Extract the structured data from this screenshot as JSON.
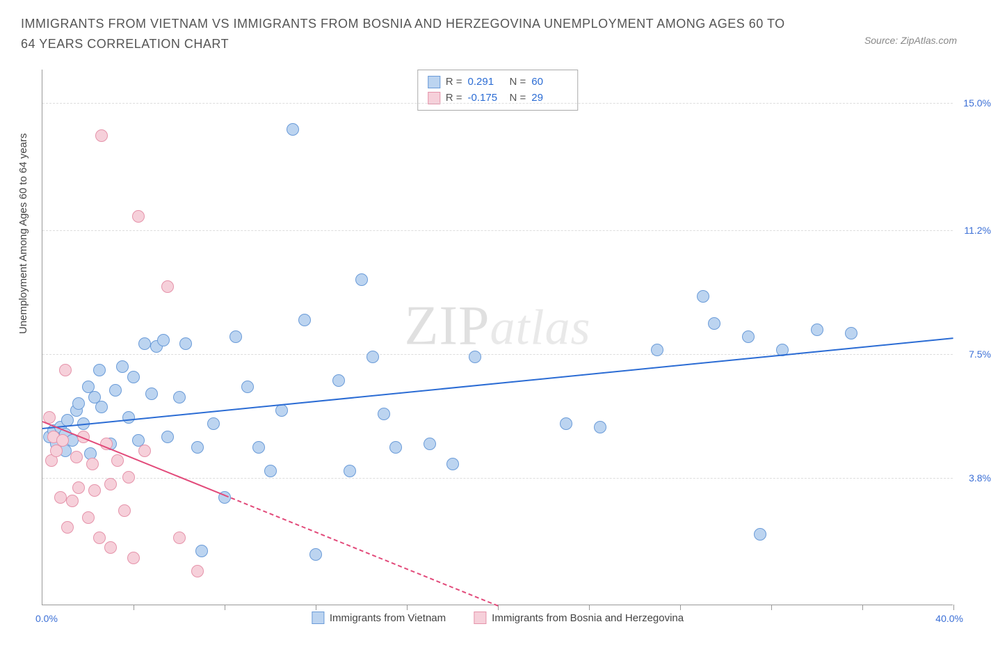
{
  "header": {
    "title": "IMMIGRANTS FROM VIETNAM VS IMMIGRANTS FROM BOSNIA AND HERZEGOVINA UNEMPLOYMENT AMONG AGES 60 TO 64 YEARS CORRELATION CHART",
    "source": "Source: ZipAtlas.com"
  },
  "chart": {
    "type": "scatter",
    "ylabel": "Unemployment Among Ages 60 to 64 years",
    "xlim": [
      0,
      40
    ],
    "ylim": [
      0,
      16
    ],
    "yticks": [
      {
        "v": 3.8,
        "label": "3.8%"
      },
      {
        "v": 7.5,
        "label": "7.5%"
      },
      {
        "v": 11.2,
        "label": "11.2%"
      },
      {
        "v": 15.0,
        "label": "15.0%"
      }
    ],
    "xticks_minor": [
      4,
      8,
      12,
      16,
      20,
      24,
      28,
      32,
      36,
      40
    ],
    "xaxis_min_label": "0.0%",
    "xaxis_max_label": "40.0%",
    "background_color": "#ffffff",
    "grid_color": "#dddddd",
    "point_radius": 9,
    "point_stroke_width": 1,
    "series": [
      {
        "name": "Immigrants from Vietnam",
        "color_fill": "#bcd4f0",
        "color_stroke": "#6a9bd8",
        "trend_color": "#2b6cd4",
        "R": "0.291",
        "N": "60",
        "trend": {
          "x1": 0,
          "y1": 5.3,
          "x2": 40,
          "y2": 8.0,
          "dash_from_x": null
        },
        "points": [
          [
            0.3,
            5.0
          ],
          [
            0.5,
            5.2
          ],
          [
            0.6,
            4.8
          ],
          [
            0.8,
            5.3
          ],
          [
            1.0,
            5.1
          ],
          [
            1.0,
            4.6
          ],
          [
            1.1,
            5.5
          ],
          [
            1.3,
            4.9
          ],
          [
            1.5,
            5.8
          ],
          [
            1.6,
            6.0
          ],
          [
            1.8,
            5.4
          ],
          [
            2.0,
            6.5
          ],
          [
            2.1,
            4.5
          ],
          [
            2.3,
            6.2
          ],
          [
            2.5,
            7.0
          ],
          [
            2.6,
            5.9
          ],
          [
            3.0,
            4.8
          ],
          [
            3.2,
            6.4
          ],
          [
            3.5,
            7.1
          ],
          [
            3.8,
            5.6
          ],
          [
            4.0,
            6.8
          ],
          [
            4.2,
            4.9
          ],
          [
            4.5,
            7.8
          ],
          [
            4.8,
            6.3
          ],
          [
            5.0,
            7.7
          ],
          [
            5.3,
            7.9
          ],
          [
            5.5,
            5.0
          ],
          [
            6.0,
            6.2
          ],
          [
            6.3,
            7.8
          ],
          [
            6.8,
            4.7
          ],
          [
            7.0,
            1.6
          ],
          [
            7.5,
            5.4
          ],
          [
            8.0,
            3.2
          ],
          [
            8.5,
            8.0
          ],
          [
            9.0,
            6.5
          ],
          [
            9.5,
            4.7
          ],
          [
            10.0,
            4.0
          ],
          [
            10.5,
            5.8
          ],
          [
            11.0,
            14.2
          ],
          [
            11.5,
            8.5
          ],
          [
            12.0,
            1.5
          ],
          [
            13.0,
            6.7
          ],
          [
            13.5,
            4.0
          ],
          [
            14.0,
            9.7
          ],
          [
            14.5,
            7.4
          ],
          [
            15.0,
            5.7
          ],
          [
            15.5,
            4.7
          ],
          [
            17.0,
            4.8
          ],
          [
            18.0,
            4.2
          ],
          [
            19.0,
            7.4
          ],
          [
            23.0,
            5.4
          ],
          [
            24.5,
            5.3
          ],
          [
            27.0,
            7.6
          ],
          [
            29.0,
            9.2
          ],
          [
            29.5,
            8.4
          ],
          [
            31.0,
            8.0
          ],
          [
            31.5,
            2.1
          ],
          [
            32.5,
            7.6
          ],
          [
            34.0,
            8.2
          ],
          [
            35.5,
            8.1
          ]
        ]
      },
      {
        "name": "Immigrants from Bosnia and Herzegovina",
        "color_fill": "#f6d0da",
        "color_stroke": "#e593aa",
        "trend_color": "#e24a7a",
        "R": "-0.175",
        "N": "29",
        "trend": {
          "x1": 0,
          "y1": 5.5,
          "x2": 20,
          "y2": 0.0,
          "dash_from_x": 8
        },
        "points": [
          [
            0.3,
            5.6
          ],
          [
            0.4,
            4.3
          ],
          [
            0.5,
            5.0
          ],
          [
            0.6,
            4.6
          ],
          [
            0.8,
            3.2
          ],
          [
            0.9,
            4.9
          ],
          [
            1.0,
            7.0
          ],
          [
            1.1,
            2.3
          ],
          [
            1.3,
            3.1
          ],
          [
            1.5,
            4.4
          ],
          [
            1.6,
            3.5
          ],
          [
            1.8,
            5.0
          ],
          [
            2.0,
            2.6
          ],
          [
            2.2,
            4.2
          ],
          [
            2.3,
            3.4
          ],
          [
            2.5,
            2.0
          ],
          [
            2.6,
            14.0
          ],
          [
            2.8,
            4.8
          ],
          [
            3.0,
            3.6
          ],
          [
            3.0,
            1.7
          ],
          [
            3.3,
            4.3
          ],
          [
            3.6,
            2.8
          ],
          [
            3.8,
            3.8
          ],
          [
            4.0,
            1.4
          ],
          [
            4.2,
            11.6
          ],
          [
            4.5,
            4.6
          ],
          [
            5.5,
            9.5
          ],
          [
            6.0,
            2.0
          ],
          [
            6.8,
            1.0
          ]
        ]
      }
    ],
    "watermark": {
      "part1": "ZIP",
      "part2": "atlas"
    }
  }
}
